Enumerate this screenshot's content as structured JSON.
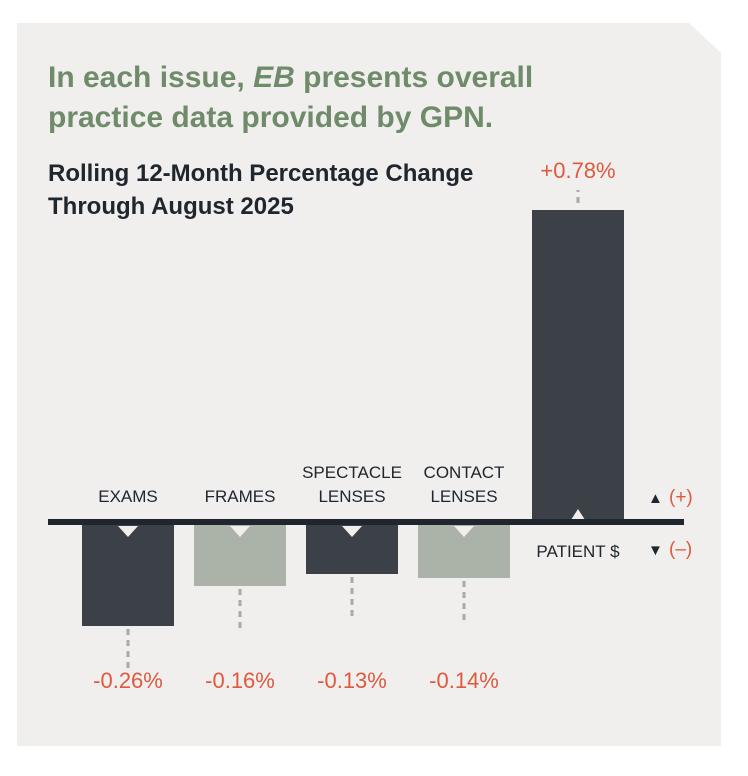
{
  "intro": {
    "before": "In each issue, ",
    "emphasis": "EB",
    "after": " presents overall practice data provided by GPN."
  },
  "chart_data": {
    "type": "bar",
    "title": "Rolling 12-Month Percentage Change Through August 2025",
    "categories": [
      "EXAMS",
      "FRAMES",
      "SPECTACLE LENSES",
      "CONTACT LENSES",
      "PATIENT $"
    ],
    "category_lines": [
      [
        "EXAMS"
      ],
      [
        "FRAMES"
      ],
      [
        "SPECTACLE",
        "LENSES"
      ],
      [
        "CONTACT",
        "LENSES"
      ],
      [
        "PATIENT $"
      ]
    ],
    "values": [
      -0.26,
      -0.16,
      -0.13,
      -0.14,
      0.78
    ],
    "value_labels": [
      "-0.26%",
      "-0.16%",
      "-0.13%",
      "-0.14%",
      "+0.78%"
    ],
    "bar_colors": [
      "#3c4148",
      "#abb2a8",
      "#3c4148",
      "#abb2a8",
      "#3c4148"
    ],
    "label_color": "#dd5a3f",
    "axis_color": "#20262e",
    "legend": {
      "up_symbol": "▲",
      "up_text": "(+)",
      "down_symbol": "▼",
      "down_text": "(–)"
    },
    "xlabel": "",
    "ylabel": "",
    "grid": false
  }
}
